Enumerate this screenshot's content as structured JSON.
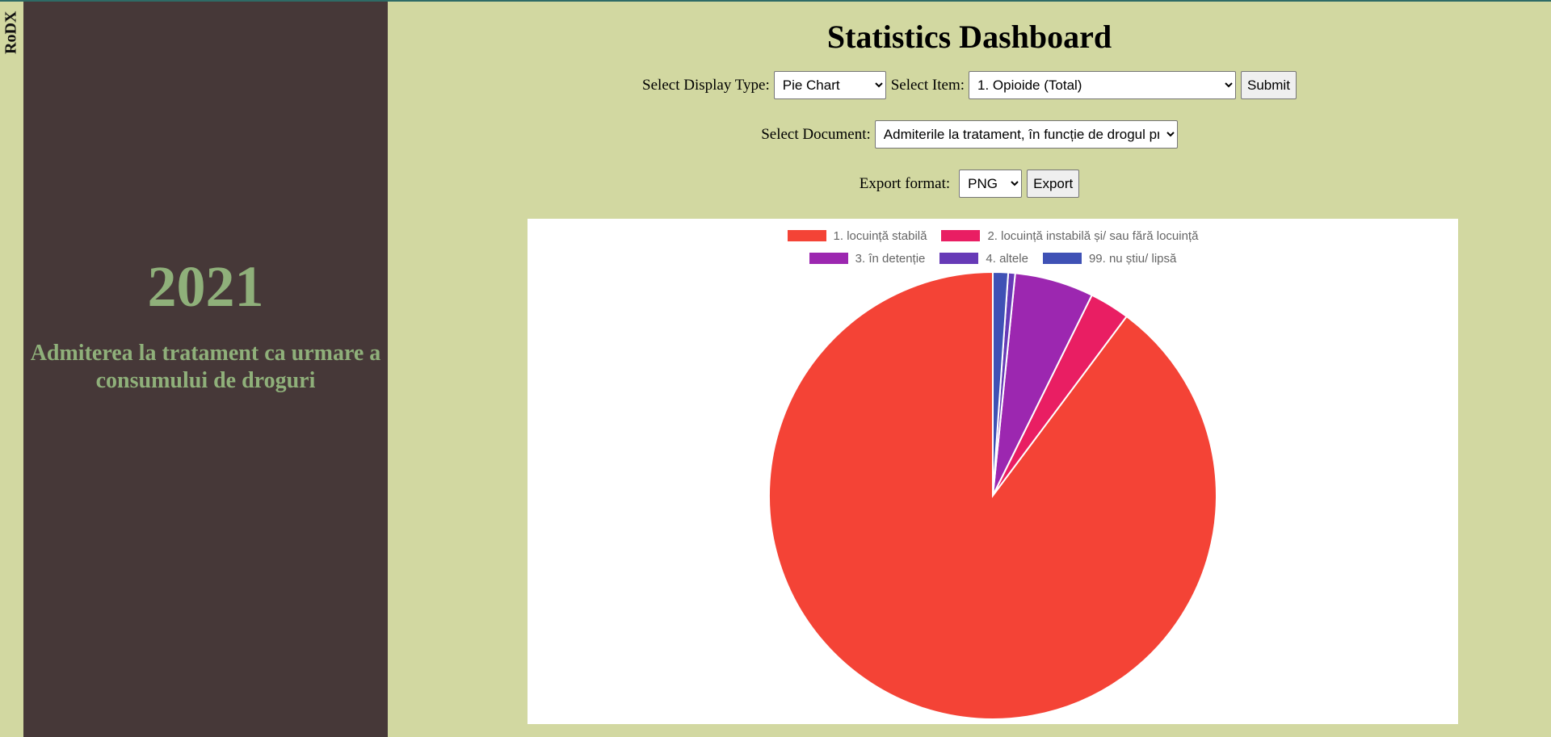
{
  "brand": "RoDX",
  "sidebar": {
    "year": "2021",
    "subtitle": "Admiterea la tratament ca urmare a consumului de droguri"
  },
  "header": {
    "title": "Statistics Dashboard"
  },
  "controls": {
    "display_type_label": "Select Display Type:",
    "display_type_value": "Pie Chart",
    "item_label": "Select Item:",
    "item_value": "1. Opioide (Total)",
    "submit_label": "Submit",
    "document_label": "Select Document:",
    "document_value": "Admiterile la tratament, în funcție de drogul primar",
    "export_label": "Export format:",
    "export_value": "PNG",
    "export_button": "Export"
  },
  "colors": {
    "background": "#d2d8a1",
    "sidebar": "#463838",
    "accent_text": "#8fb07a"
  },
  "chart_data": {
    "type": "pie",
    "legend_position": "top",
    "labels": [
      "1. locuință stabilă",
      "2. locuință instabilă și/ sau  fără locuință",
      "3. în detenție",
      "4. altele",
      "99. nu știu/ lipsă"
    ],
    "colors": [
      "#f44336",
      "#e91e63",
      "#9c27b0",
      "#673ab7",
      "#3f51b5"
    ],
    "values": [
      89.8,
      2.9,
      5.7,
      0.5,
      1.1
    ]
  }
}
